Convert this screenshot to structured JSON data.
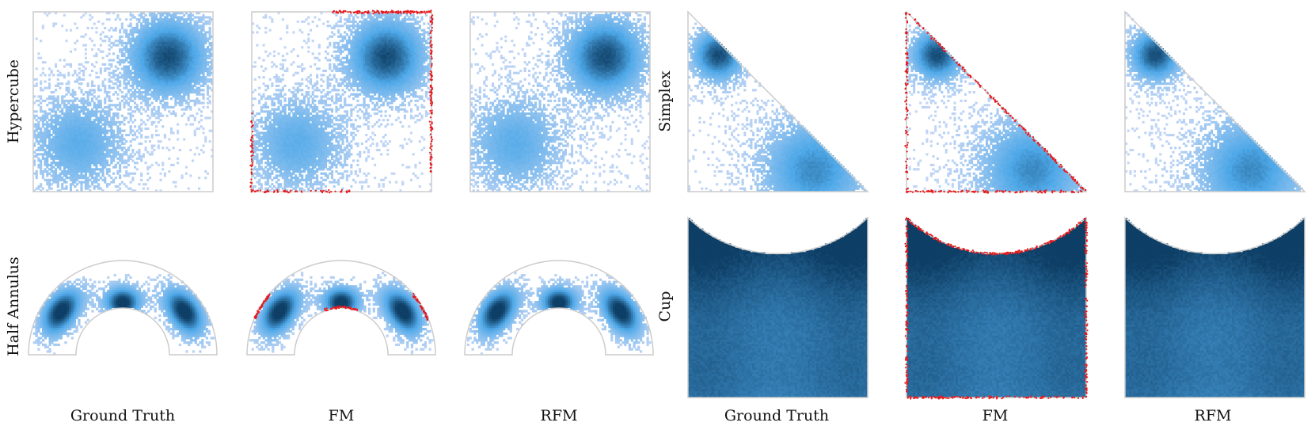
{
  "figure": {
    "row_labels": {
      "hypercube": "Hypercube",
      "half_annulus": "Half Annulus",
      "simplex": "Simplex",
      "cup": "Cup"
    },
    "column_labels": [
      "Ground Truth",
      "FM",
      "RFM"
    ]
  },
  "colors": {
    "density_low": "#c3d6f5",
    "density_mid": "#4ea8e8",
    "density_high": "#0e3f66",
    "violation": "#e8191c",
    "boundary": "#cccccc"
  },
  "chart_data": [
    {
      "type": "heatmap",
      "domain": "hypercube",
      "columns": [
        "Ground Truth",
        "FM",
        "RFM"
      ],
      "xlim": [
        0,
        1
      ],
      "ylim": [
        0,
        1
      ],
      "modes": [
        {
          "x": 0.75,
          "y": 0.75,
          "sigma": 0.15,
          "weight": 1.0
        },
        {
          "x": 0.25,
          "y": 0.27,
          "sigma": 0.18,
          "weight": 0.55
        }
      ],
      "fm_boundary_violations": [
        "top",
        "right",
        "left-lower",
        "bottom-left"
      ]
    },
    {
      "type": "heatmap",
      "domain": "half_annulus",
      "columns": [
        "Ground Truth",
        "FM",
        "RFM"
      ],
      "inner_radius": 0.5,
      "outer_radius": 1.0,
      "modes": [
        {
          "angle_deg": 145,
          "radius": 0.8,
          "weight": 1.0
        },
        {
          "angle_deg": 90,
          "radius": 0.55,
          "weight": 1.0
        },
        {
          "angle_deg": 35,
          "radius": 0.8,
          "weight": 1.0
        }
      ],
      "fm_boundary_violations": [
        "outer-left",
        "inner-top",
        "outer-right"
      ]
    },
    {
      "type": "heatmap",
      "domain": "simplex",
      "columns": [
        "Ground Truth",
        "FM",
        "RFM"
      ],
      "xlim": [
        0,
        1
      ],
      "ylim": [
        0,
        1
      ],
      "modes": [
        {
          "x": 0.17,
          "y": 0.76,
          "sigma": 0.1,
          "weight": 1.0
        },
        {
          "x": 0.7,
          "y": 0.12,
          "sigma": 0.2,
          "weight": 0.75
        }
      ],
      "fm_boundary_violations": [
        "hypotenuse",
        "left",
        "bottom"
      ]
    },
    {
      "type": "heatmap",
      "domain": "cup",
      "columns": [
        "Ground Truth",
        "FM",
        "RFM"
      ],
      "xlim": [
        0,
        1
      ],
      "ylim": [
        0,
        1
      ],
      "modes": [
        {
          "x": 0.0,
          "y": 1.0,
          "weight": 1.0
        },
        {
          "x": 1.0,
          "y": 1.0,
          "weight": 1.0
        },
        {
          "x": 0.0,
          "y": 0.0,
          "weight": 0.75
        },
        {
          "x": 1.0,
          "y": 0.0,
          "weight": 0.75
        }
      ],
      "fm_boundary_violations": [
        "top-arc",
        "left",
        "right",
        "bottom"
      ]
    }
  ]
}
